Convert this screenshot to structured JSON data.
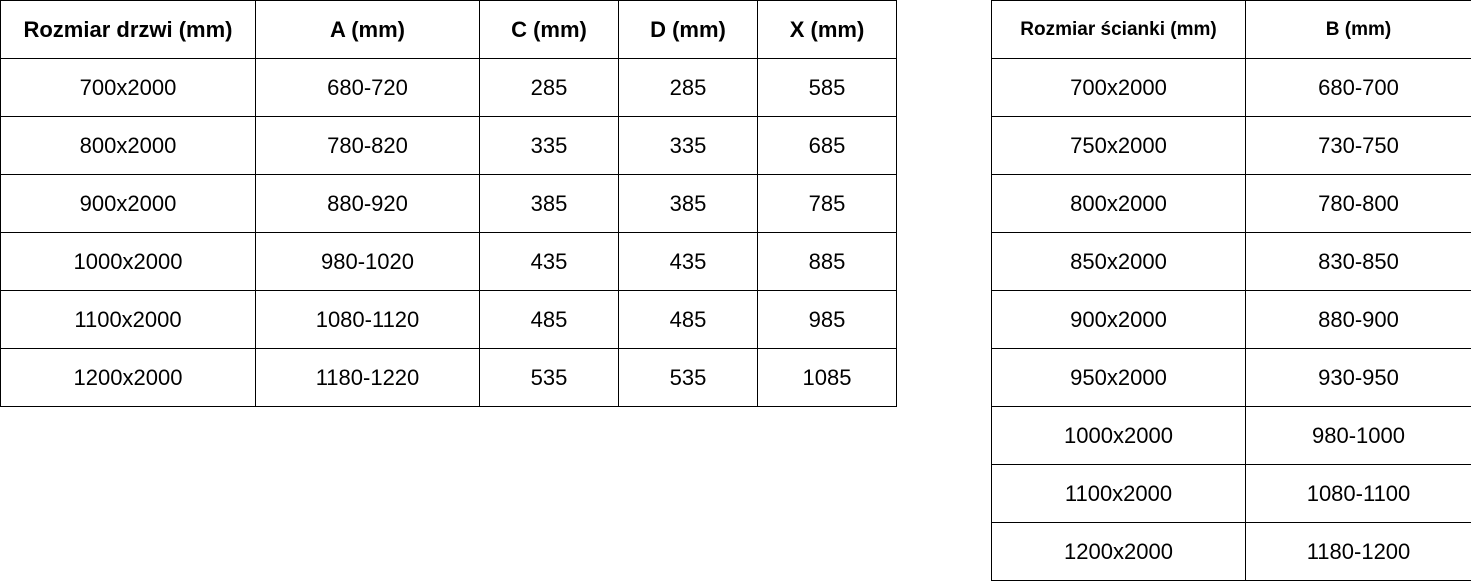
{
  "doors_table": {
    "headers": [
      "Rozmiar drzwi (mm)",
      "A (mm)",
      "C (mm)",
      "D (mm)",
      "X (mm)"
    ],
    "rows": [
      [
        "700x2000",
        "680-720",
        "285",
        "285",
        "585"
      ],
      [
        "800x2000",
        "780-820",
        "335",
        "335",
        "685"
      ],
      [
        "900x2000",
        "880-920",
        "385",
        "385",
        "785"
      ],
      [
        "1000x2000",
        "980-1020",
        "435",
        "435",
        "885"
      ],
      [
        "1100x2000",
        "1080-1120",
        "485",
        "485",
        "985"
      ],
      [
        "1200x2000",
        "1180-1220",
        "535",
        "535",
        "1085"
      ]
    ]
  },
  "wall_table": {
    "headers": [
      "Rozmiar ścianki (mm)",
      "B (mm)"
    ],
    "rows": [
      [
        "700x2000",
        "680-700"
      ],
      [
        "750x2000",
        "730-750"
      ],
      [
        "800x2000",
        "780-800"
      ],
      [
        "850x2000",
        "830-850"
      ],
      [
        "900x2000",
        "880-900"
      ],
      [
        "950x2000",
        "930-950"
      ],
      [
        "1000x2000",
        "980-1000"
      ],
      [
        "1100x2000",
        "1080-1100"
      ],
      [
        "1200x2000",
        "1180-1200"
      ]
    ]
  }
}
